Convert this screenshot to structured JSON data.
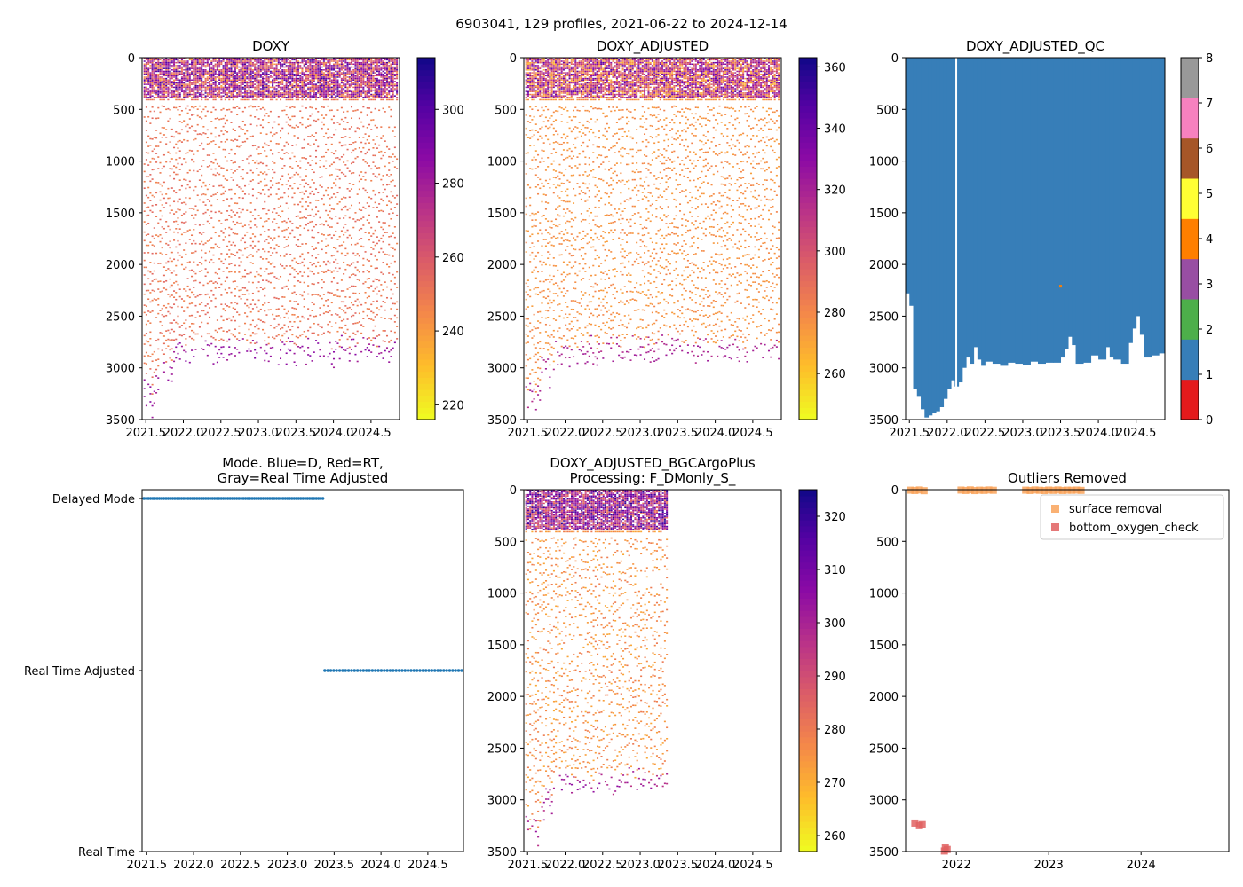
{
  "suptitle": "6903041, 129 profiles, 2021-06-22 to 2024-12-14",
  "colors": {
    "qc_ok": "#377eb8",
    "mode_points": "#1f77b4",
    "surface_removal": "#f9a35a",
    "bottom_oxygen_check": "#e06060"
  },
  "chart_data": [
    {
      "id": "doxy",
      "type": "heatmap",
      "title": "DOXY",
      "xlim": [
        2021.45,
        2024.88
      ],
      "ylim": [
        3500,
        0
      ],
      "xticks": [
        "2021.5",
        "2022.0",
        "2022.5",
        "2023.0",
        "2023.5",
        "2024.0",
        "2024.5"
      ],
      "xtick_values": [
        2021.5,
        2022.0,
        2022.5,
        2023.0,
        2023.5,
        2024.0,
        2024.5
      ],
      "yticks": [
        "0",
        "500",
        "1000",
        "1500",
        "2000",
        "2500",
        "3000",
        "3500"
      ],
      "ytick_values": [
        0,
        500,
        1000,
        1500,
        2000,
        2500,
        3000,
        3500
      ],
      "colormap": "plasma_r",
      "clim": [
        216,
        314
      ],
      "cbar_ticks": [
        "220",
        "240",
        "260",
        "280",
        "300"
      ],
      "cbar_tick_values": [
        220,
        240,
        260,
        280,
        300
      ],
      "surface_range": [
        238,
        305
      ],
      "deep_value": 250,
      "bottom_value": 282,
      "seed": 11
    },
    {
      "id": "doxy_adj",
      "type": "heatmap",
      "title": "DOXY_ADJUSTED",
      "xlim": [
        2021.45,
        2024.88
      ],
      "ylim": [
        3500,
        0
      ],
      "xticks": [
        "2021.5",
        "2022.0",
        "2022.5",
        "2023.0",
        "2023.5",
        "2024.0",
        "2024.5"
      ],
      "xtick_values": [
        2021.5,
        2022.0,
        2022.5,
        2023.0,
        2023.5,
        2024.0,
        2024.5
      ],
      "yticks": [
        "0",
        "500",
        "1000",
        "1500",
        "2000",
        "2500",
        "3000",
        "3500"
      ],
      "ytick_values": [
        0,
        500,
        1000,
        1500,
        2000,
        2500,
        3000,
        3500
      ],
      "colormap": "plasma_r",
      "clim": [
        245,
        363
      ],
      "cbar_ticks": [
        "260",
        "280",
        "300",
        "320",
        "340",
        "360"
      ],
      "cbar_tick_values": [
        260,
        280,
        300,
        320,
        340,
        360
      ],
      "surface_range": [
        262,
        345
      ],
      "deep_value": 276,
      "bottom_value": 318,
      "seed": 23
    },
    {
      "id": "doxy_qc",
      "type": "heatmap",
      "title": "DOXY_ADJUSTED_QC",
      "xlim": [
        2021.45,
        2024.88
      ],
      "ylim": [
        3500,
        0
      ],
      "xticks": [
        "2021.5",
        "2022.0",
        "2022.5",
        "2023.0",
        "2023.5",
        "2024.0",
        "2024.5"
      ],
      "xtick_values": [
        2021.5,
        2022.0,
        2022.5,
        2023.0,
        2023.5,
        2024.0,
        2024.5
      ],
      "yticks": [
        "0",
        "500",
        "1000",
        "1500",
        "2000",
        "2500",
        "3000",
        "3500"
      ],
      "ytick_values": [
        0,
        500,
        1000,
        1500,
        2000,
        2500,
        3000,
        3500
      ],
      "qc_value": 1,
      "gap_at": 2022.12,
      "bottom_depth_profile": [
        [
          2021.45,
          2280
        ],
        [
          2021.5,
          2400
        ],
        [
          2021.55,
          3200
        ],
        [
          2021.6,
          3280
        ],
        [
          2021.65,
          3400
        ],
        [
          2021.7,
          3480
        ],
        [
          2021.75,
          3460
        ],
        [
          2021.8,
          3440
        ],
        [
          2021.85,
          3420
        ],
        [
          2021.9,
          3380
        ],
        [
          2021.95,
          3300
        ],
        [
          2022.0,
          3200
        ],
        [
          2022.05,
          3120
        ],
        [
          2022.1,
          3180
        ],
        [
          2022.15,
          3140
        ],
        [
          2022.2,
          3000
        ],
        [
          2022.25,
          2900
        ],
        [
          2022.3,
          2960
        ],
        [
          2022.35,
          2800
        ],
        [
          2022.4,
          2920
        ],
        [
          2022.45,
          2980
        ],
        [
          2022.5,
          2940
        ],
        [
          2022.6,
          2960
        ],
        [
          2022.7,
          2980
        ],
        [
          2022.8,
          2950
        ],
        [
          2022.9,
          2960
        ],
        [
          2023.0,
          2970
        ],
        [
          2023.1,
          2940
        ],
        [
          2023.2,
          2960
        ],
        [
          2023.3,
          2950
        ],
        [
          2023.4,
          2950
        ],
        [
          2023.5,
          2900
        ],
        [
          2023.55,
          2820
        ],
        [
          2023.6,
          2700
        ],
        [
          2023.65,
          2780
        ],
        [
          2023.7,
          2960
        ],
        [
          2023.8,
          2950
        ],
        [
          2023.9,
          2880
        ],
        [
          2024.0,
          2920
        ],
        [
          2024.1,
          2800
        ],
        [
          2024.15,
          2900
        ],
        [
          2024.2,
          2920
        ],
        [
          2024.3,
          2960
        ],
        [
          2024.4,
          2760
        ],
        [
          2024.45,
          2620
        ],
        [
          2024.5,
          2500
        ],
        [
          2024.55,
          2680
        ],
        [
          2024.6,
          2900
        ],
        [
          2024.7,
          2880
        ],
        [
          2024.8,
          2860
        ],
        [
          2024.88,
          2960
        ]
      ],
      "flag4_mark": {
        "x": 2023.5,
        "y": 2210
      },
      "colorbar": {
        "type": "discrete",
        "range": [
          0,
          8
        ],
        "ticks": [
          "0",
          "1",
          "2",
          "3",
          "4",
          "5",
          "6",
          "7",
          "8"
        ],
        "tick_values": [
          0,
          1,
          2,
          3,
          4,
          5,
          6,
          7,
          8
        ],
        "colors": [
          "#e41a1c",
          "#377eb8",
          "#4daf4a",
          "#984ea3",
          "#ff7f00",
          "#ffff33",
          "#a65628",
          "#f781bf",
          "#999999"
        ]
      }
    },
    {
      "id": "mode",
      "type": "scatter",
      "title": "Mode. Blue=D, Red=RT,\nGray=Real Time Adjusted",
      "xlim": [
        2021.45,
        2024.88
      ],
      "xticks": [
        "2021.5",
        "2022.0",
        "2022.5",
        "2023.0",
        "2023.5",
        "2024.0",
        "2024.5"
      ],
      "xtick_values": [
        2021.5,
        2022.0,
        2022.5,
        2023.0,
        2023.5,
        2024.0,
        2024.5
      ],
      "ycategories": [
        "Real Time",
        "Real Time Adjusted",
        "Delayed Mode"
      ],
      "series": [
        {
          "name": "Delayed Mode",
          "x_range": [
            2021.47,
            2023.38
          ],
          "count": 82,
          "category": 2
        },
        {
          "name": "Real Time Adjusted",
          "x_range": [
            2023.4,
            2024.86
          ],
          "count": 47,
          "category": 1
        }
      ]
    },
    {
      "id": "bgc",
      "type": "heatmap",
      "title": "DOXY_ADJUSTED_BGCArgoPlus\nProcessing: F_DMonly_S_",
      "xlim": [
        2021.45,
        2024.88
      ],
      "ylim": [
        3500,
        0
      ],
      "data_xlim": [
        2021.45,
        2023.37
      ],
      "xticks": [
        "2021.5",
        "2022.0",
        "2022.5",
        "2023.0",
        "2023.5",
        "2024.0",
        "2024.5"
      ],
      "xtick_values": [
        2021.5,
        2022.0,
        2022.5,
        2023.0,
        2023.5,
        2024.0,
        2024.5
      ],
      "yticks": [
        "0",
        "500",
        "1000",
        "1500",
        "2000",
        "2500",
        "3000",
        "3500"
      ],
      "ytick_values": [
        0,
        500,
        1000,
        1500,
        2000,
        2500,
        3000,
        3500
      ],
      "colormap": "plasma_r",
      "clim": [
        257,
        325
      ],
      "cbar_ticks": [
        "260",
        "270",
        "280",
        "290",
        "300",
        "310",
        "320"
      ],
      "cbar_tick_values": [
        260,
        270,
        280,
        290,
        300,
        310,
        320
      ],
      "surface_range": [
        280,
        322
      ],
      "deep_value": 275,
      "bottom_value": 300,
      "seed": 37
    },
    {
      "id": "outliers",
      "type": "scatter",
      "title": "Outliers Removed",
      "xlim": [
        2021.45,
        2024.95
      ],
      "ylim": [
        3500,
        0
      ],
      "xticks": [
        "2022",
        "2023",
        "2024"
      ],
      "xtick_values": [
        2022.0,
        2023.0,
        2024.0
      ],
      "yticks": [
        "0",
        "500",
        "1000",
        "1500",
        "2000",
        "2500",
        "3000",
        "3500"
      ],
      "ytick_values": [
        0,
        500,
        1000,
        1500,
        2000,
        2500,
        3000,
        3500
      ],
      "legend": [
        "surface removal",
        "bottom_oxygen_check"
      ],
      "legend_loc": "upper right",
      "series": [
        {
          "name": "surface removal",
          "points": [
            [
              2021.5,
              5
            ],
            [
              2021.55,
              8
            ],
            [
              2021.6,
              3
            ],
            [
              2021.65,
              10
            ],
            [
              2022.05,
              4
            ],
            [
              2022.1,
              8
            ],
            [
              2022.15,
              2
            ],
            [
              2022.2,
              9
            ],
            [
              2022.25,
              5
            ],
            [
              2022.3,
              7
            ],
            [
              2022.35,
              3
            ],
            [
              2022.4,
              6
            ],
            [
              2022.75,
              5
            ],
            [
              2022.8,
              8
            ],
            [
              2022.85,
              3
            ],
            [
              2022.9,
              6
            ],
            [
              2022.95,
              9
            ],
            [
              2023.0,
              4
            ],
            [
              2023.05,
              7
            ],
            [
              2023.1,
              3
            ],
            [
              2023.15,
              8
            ],
            [
              2023.2,
              5
            ],
            [
              2023.25,
              6
            ],
            [
              2023.3,
              4
            ],
            [
              2023.35,
              7
            ]
          ]
        },
        {
          "name": "bottom_oxygen_check",
          "points": [
            [
              2021.55,
              3225
            ],
            [
              2021.6,
              3250
            ],
            [
              2021.63,
              3240
            ],
            [
              2021.88,
              3460
            ],
            [
              2021.9,
              3480
            ],
            [
              2021.87,
              3495
            ]
          ]
        }
      ]
    }
  ]
}
